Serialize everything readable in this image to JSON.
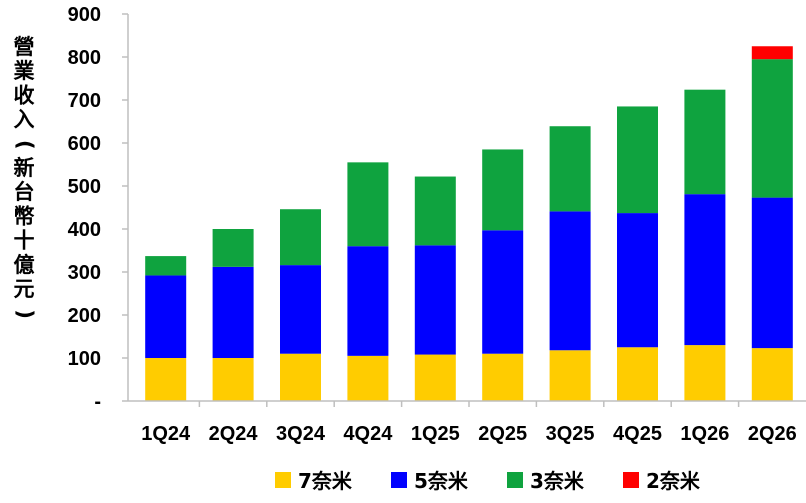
{
  "chart_data": {
    "type": "bar",
    "stacked": true,
    "ylabel": "營業收入(新台幣十億元)",
    "ylim": [
      0,
      900
    ],
    "y_ticks": [
      "-",
      "100",
      "200",
      "300",
      "400",
      "500",
      "600",
      "700",
      "800",
      "900"
    ],
    "grid": false,
    "legend_position": "bottom",
    "categories": [
      "1Q24",
      "2Q24",
      "3Q24",
      "4Q24",
      "1Q25",
      "2Q25",
      "3Q25",
      "4Q25",
      "1Q26",
      "2Q26"
    ],
    "series": [
      {
        "name": "7奈米",
        "color": "#ffcc00",
        "values": [
          100,
          100,
          110,
          105,
          108,
          110,
          118,
          125,
          130,
          123
        ]
      },
      {
        "name": "5奈米",
        "color": "#0000ff",
        "values": [
          192,
          212,
          206,
          255,
          254,
          287,
          323,
          312,
          351,
          350
        ]
      },
      {
        "name": "3奈米",
        "color": "#0fa33f",
        "values": [
          45,
          88,
          130,
          195,
          160,
          188,
          198,
          248,
          243,
          322
        ]
      },
      {
        "name": "2奈米",
        "color": "#ff0000",
        "values": [
          0,
          0,
          0,
          0,
          0,
          0,
          0,
          0,
          0,
          30
        ]
      }
    ]
  }
}
